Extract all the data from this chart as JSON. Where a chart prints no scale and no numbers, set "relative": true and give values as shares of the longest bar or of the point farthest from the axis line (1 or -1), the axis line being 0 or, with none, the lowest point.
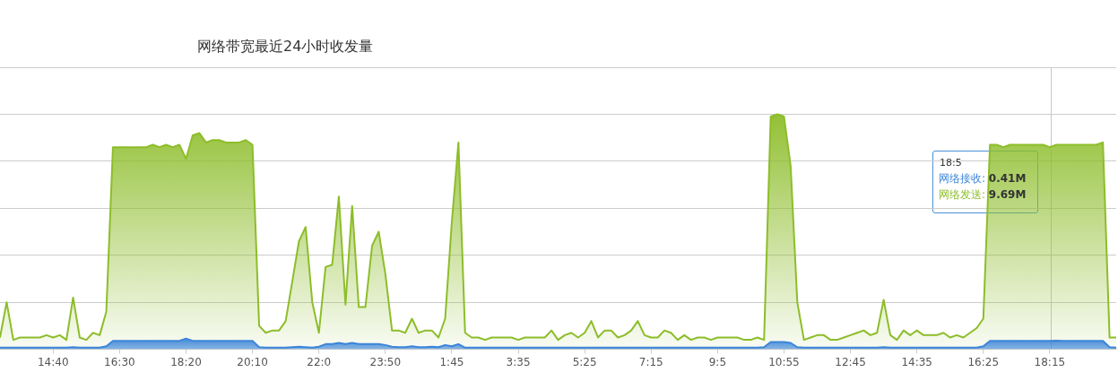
{
  "chart_data": {
    "type": "area",
    "title": "网络带宽最近24小时收发量",
    "relative": true,
    "categories": [
      null,
      null,
      null,
      null,
      null,
      null,
      null,
      null,
      "14:40",
      null,
      null,
      null,
      null,
      null,
      null,
      null,
      null,
      null,
      "16:30",
      null,
      null,
      null,
      null,
      null,
      null,
      null,
      null,
      null,
      "18:20",
      null,
      null,
      null,
      null,
      null,
      null,
      null,
      null,
      null,
      "20:10",
      null,
      null,
      null,
      null,
      null,
      null,
      null,
      null,
      null,
      "22:0",
      null,
      null,
      null,
      null,
      null,
      null,
      null,
      null,
      null,
      "23:50",
      null,
      null,
      null,
      null,
      null,
      null,
      null,
      null,
      null,
      "1:45",
      null,
      null,
      null,
      null,
      null,
      null,
      null,
      null,
      null,
      "3:35",
      null,
      null,
      null,
      null,
      null,
      null,
      null,
      null,
      null,
      "5:25",
      null,
      null,
      null,
      null,
      null,
      null,
      null,
      null,
      null,
      "7:15",
      null,
      null,
      null,
      null,
      null,
      null,
      null,
      null,
      null,
      "9:5",
      null,
      null,
      null,
      null,
      null,
      null,
      null,
      null,
      null,
      "10:55",
      null,
      null,
      null,
      null,
      null,
      null,
      null,
      null,
      null,
      "12:45",
      null,
      null,
      null,
      null,
      null,
      null,
      null,
      null,
      null,
      "14:35",
      null,
      null,
      null,
      null,
      null,
      null,
      null,
      null,
      null,
      "16:25",
      null,
      null,
      null,
      null,
      null,
      null,
      null,
      null,
      null,
      "18:15",
      null,
      null,
      null,
      null,
      null,
      null,
      null,
      null,
      null,
      null
    ],
    "series": [
      {
        "name": "网络接收",
        "color": "#3c85d8",
        "values": [
          0.007,
          0.007,
          0.007,
          0.007,
          0.007,
          0.007,
          0.007,
          0.007,
          0.007,
          0.007,
          0.007,
          0.009,
          0.007,
          0.007,
          0.007,
          0.007,
          0.013,
          0.036,
          0.036,
          0.036,
          0.036,
          0.036,
          0.036,
          0.036,
          0.036,
          0.036,
          0.036,
          0.036,
          0.045,
          0.036,
          0.036,
          0.036,
          0.036,
          0.036,
          0.036,
          0.036,
          0.036,
          0.036,
          0.036,
          0.009,
          0.007,
          0.007,
          0.007,
          0.007,
          0.009,
          0.011,
          0.009,
          0.007,
          0.011,
          0.022,
          0.022,
          0.027,
          0.022,
          0.027,
          0.022,
          0.022,
          0.022,
          0.022,
          0.018,
          0.011,
          0.009,
          0.009,
          0.013,
          0.009,
          0.009,
          0.011,
          0.009,
          0.018,
          0.013,
          0.022,
          0.007,
          0.007,
          0.007,
          0.007,
          0.007,
          0.007,
          0.007,
          0.007,
          0.007,
          0.007,
          0.007,
          0.007,
          0.007,
          0.007,
          0.007,
          0.007,
          0.007,
          0.007,
          0.007,
          0.007,
          0.007,
          0.007,
          0.007,
          0.007,
          0.007,
          0.007,
          0.007,
          0.007,
          0.007,
          0.007,
          0.007,
          0.007,
          0.007,
          0.007,
          0.007,
          0.007,
          0.007,
          0.007,
          0.007,
          0.007,
          0.007,
          0.007,
          0.007,
          0.007,
          0.007,
          0.009,
          0.031,
          0.031,
          0.031,
          0.027,
          0.009,
          0.007,
          0.007,
          0.007,
          0.007,
          0.007,
          0.007,
          0.007,
          0.007,
          0.007,
          0.007,
          0.007,
          0.007,
          0.009,
          0.007,
          0.007,
          0.007,
          0.007,
          0.007,
          0.007,
          0.007,
          0.007,
          0.007,
          0.007,
          0.007,
          0.007,
          0.007,
          0.007,
          0.013,
          0.036,
          0.036,
          0.036,
          0.036,
          0.036,
          0.036,
          0.036,
          0.036,
          0.036,
          0.036,
          0.037,
          0.036,
          0.036,
          0.036,
          0.036,
          0.036,
          0.036,
          0.036,
          0.009,
          0.007
        ]
      },
      {
        "name": "网络发送",
        "color": "#8dbd2a",
        "values": [
          0.05,
          0.2,
          0.04,
          0.05,
          0.05,
          0.05,
          0.05,
          0.06,
          0.05,
          0.06,
          0.04,
          0.22,
          0.05,
          0.04,
          0.07,
          0.06,
          0.16,
          0.86,
          0.86,
          0.86,
          0.86,
          0.86,
          0.86,
          0.87,
          0.86,
          0.87,
          0.86,
          0.87,
          0.81,
          0.91,
          0.92,
          0.88,
          0.89,
          0.89,
          0.88,
          0.88,
          0.88,
          0.89,
          0.87,
          0.1,
          0.07,
          0.08,
          0.08,
          0.12,
          0.29,
          0.46,
          0.52,
          0.2,
          0.07,
          0.35,
          0.36,
          0.65,
          0.19,
          0.61,
          0.18,
          0.18,
          0.44,
          0.5,
          0.32,
          0.08,
          0.08,
          0.07,
          0.13,
          0.07,
          0.08,
          0.08,
          0.05,
          0.13,
          0.54,
          0.88,
          0.07,
          0.05,
          0.05,
          0.04,
          0.05,
          0.05,
          0.05,
          0.05,
          0.04,
          0.05,
          0.05,
          0.05,
          0.05,
          0.08,
          0.04,
          0.06,
          0.07,
          0.05,
          0.07,
          0.12,
          0.05,
          0.08,
          0.08,
          0.05,
          0.06,
          0.08,
          0.12,
          0.06,
          0.05,
          0.05,
          0.08,
          0.07,
          0.04,
          0.06,
          0.04,
          0.05,
          0.05,
          0.04,
          0.05,
          0.05,
          0.05,
          0.05,
          0.04,
          0.04,
          0.05,
          0.04,
          0.99,
          1,
          0.99,
          0.78,
          0.2,
          0.04,
          0.05,
          0.06,
          0.06,
          0.04,
          0.04,
          0.05,
          0.06,
          0.07,
          0.08,
          0.06,
          0.07,
          0.21,
          0.06,
          0.04,
          0.08,
          0.06,
          0.08,
          0.06,
          0.06,
          0.06,
          0.07,
          0.05,
          0.06,
          0.05,
          0.07,
          0.09,
          0.13,
          0.87,
          0.87,
          0.86,
          0.87,
          0.87,
          0.87,
          0.87,
          0.87,
          0.87,
          0.86,
          0.87,
          0.87,
          0.87,
          0.87,
          0.87,
          0.87,
          0.87,
          0.88,
          0.05,
          0.05
        ]
      }
    ],
    "tick_labels": "x",
    "grid": "y",
    "legend": false,
    "marker": "none",
    "annotations": [
      "18:5",
      ": 0.41M",
      ": 9.69M"
    ]
  }
}
